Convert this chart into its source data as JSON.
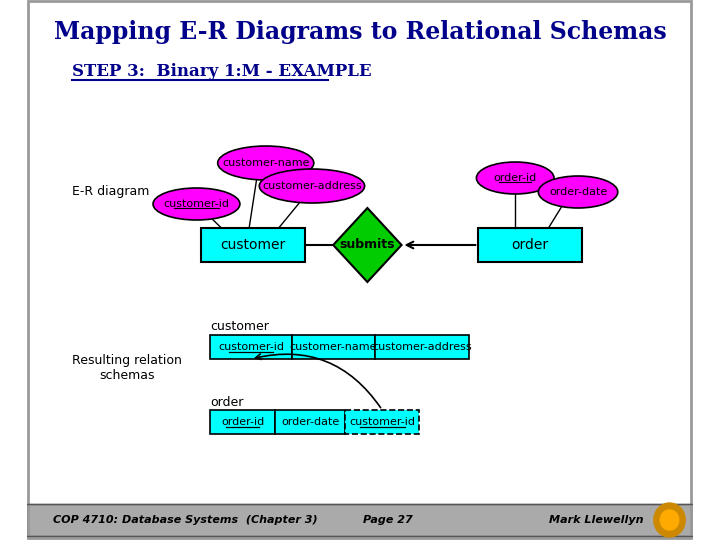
{
  "title": "Mapping E-R Diagrams to Relational Schemas",
  "subtitle": "STEP 3:  Binary 1:M - EXAMPLE",
  "slide_bg": "#ffffff",
  "title_color": "#00008B",
  "subtitle_color": "#00008B",
  "footer_bg": "#aaaaaa",
  "footer_text": "COP 4710: Database Systems  (Chapter 3)",
  "footer_page": "Page 27",
  "footer_author": "Mark Llewellyn",
  "entity_color": "#00FFFF",
  "entity_border": "#000000",
  "attr_color": "#FF00FF",
  "attr_border": "#000000",
  "diamond_color": "#00CC00",
  "diamond_border": "#000000",
  "relation_table_bg": "#00FFFF",
  "er_label": "E-R diagram",
  "result_label": "Resulting relation\nschemas"
}
